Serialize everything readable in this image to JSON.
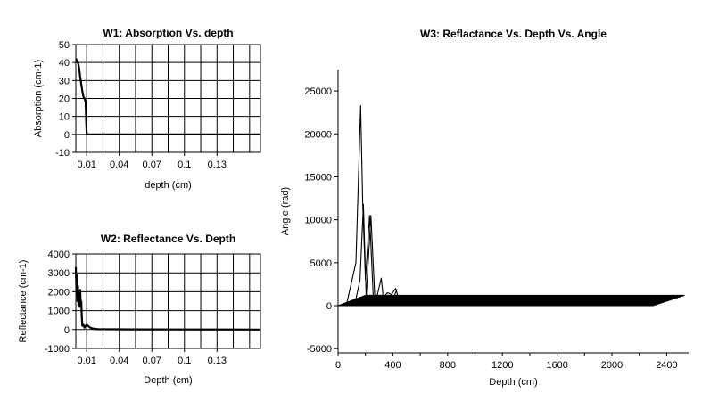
{
  "chart_data": [
    {
      "id": "w1",
      "type": "line",
      "title": "W1: Absorption Vs. depth",
      "xlabel": "depth (cm)",
      "ylabel": "Absorption (cm-1)",
      "xlim": [
        0,
        0.17
      ],
      "ylim": [
        -10,
        50
      ],
      "xticks": [
        {
          "v": 0.01,
          "t": "0.01"
        },
        {
          "v": 0.04,
          "t": "0.04"
        },
        {
          "v": 0.07,
          "t": "0.07"
        },
        {
          "v": 0.1,
          "t": "0.1"
        },
        {
          "v": 0.13,
          "t": "0.13"
        }
      ],
      "yticks": [
        -10,
        0,
        10,
        20,
        30,
        40,
        50
      ],
      "grid": true,
      "series": [
        {
          "x": [
            0.0,
            0.001,
            0.002,
            0.003,
            0.004,
            0.005,
            0.006,
            0.007,
            0.008,
            0.009,
            0.0095,
            0.01,
            0.011,
            0.012,
            0.015,
            0.05,
            0.1,
            0.17
          ],
          "y": [
            42,
            41.5,
            40,
            37,
            32,
            28,
            24,
            21,
            20,
            18,
            8,
            0,
            0,
            0,
            0,
            0,
            0,
            0
          ]
        }
      ]
    },
    {
      "id": "w2",
      "type": "line",
      "title": "W2: Reflectance Vs. Depth",
      "xlabel": "Depth (cm)",
      "ylabel": "Reflectance (cm-1)",
      "xlim": [
        0,
        0.17
      ],
      "ylim": [
        -1000,
        4000
      ],
      "xticks": [
        {
          "v": 0.01,
          "t": "0.01"
        },
        {
          "v": 0.04,
          "t": "0.04"
        },
        {
          "v": 0.07,
          "t": "0.07"
        },
        {
          "v": 0.1,
          "t": "0.1"
        },
        {
          "v": 0.13,
          "t": "0.13"
        }
      ],
      "yticks": [
        -1000,
        0,
        1000,
        2000,
        3000,
        4000
      ],
      "grid": true,
      "series": [
        {
          "x": [
            0.0,
            0.0005,
            0.001,
            0.0015,
            0.002,
            0.0025,
            0.003,
            0.0035,
            0.004,
            0.0045,
            0.005,
            0.0055,
            0.006,
            0.007,
            0.008,
            0.009,
            0.01,
            0.012,
            0.014,
            0.016,
            0.02,
            0.05,
            0.1,
            0.17
          ],
          "y": [
            3300,
            2200,
            2900,
            1500,
            2300,
            1300,
            1900,
            1200,
            2100,
            1300,
            1500,
            700,
            200,
            250,
            100,
            200,
            250,
            150,
            80,
            50,
            20,
            10,
            5,
            0
          ]
        }
      ]
    },
    {
      "id": "w3",
      "type": "line",
      "title": "W3: Reflactance Vs. Depth Vs. Angle",
      "xlabel": "Depth (cm)",
      "ylabel": "Angle (rad)",
      "xlim": [
        0,
        2560
      ],
      "ylim": [
        -5500,
        27500
      ],
      "xticks": [
        {
          "v": 0,
          "t": "0"
        },
        {
          "v": 400,
          "t": "400"
        },
        {
          "v": 800,
          "t": "800"
        },
        {
          "v": 1200,
          "t": "1200"
        },
        {
          "v": 1600,
          "t": "1600"
        },
        {
          "v": 2000,
          "t": "2000"
        },
        {
          "v": 2400,
          "t": "2400"
        }
      ],
      "yticks": [
        -5000,
        0,
        5000,
        10000,
        15000,
        20000,
        25000
      ],
      "grid": false,
      "band": {
        "top": [
          [
            0,
            0
          ],
          [
            2300,
            0
          ],
          [
            2530,
            1200
          ],
          [
            200,
            1200
          ]
        ],
        "bottom": [
          [
            0,
            0
          ],
          [
            2300,
            0
          ]
        ]
      },
      "series": [
        {
          "x": [
            60,
            130,
            165,
            180,
            200,
            230,
            260
          ],
          "y": [
            0,
            5000,
            23300,
            12000,
            3000,
            10500,
            0
          ]
        },
        {
          "x": [
            120,
            160,
            185,
            205,
            240,
            270
          ],
          "y": [
            0,
            3000,
            11800,
            1000,
            10500,
            500
          ]
        },
        {
          "x": [
            240,
            280,
            315,
            330,
            360,
            390,
            420,
            450
          ],
          "y": [
            0,
            800,
            3200,
            900,
            1500,
            1300,
            2000,
            400
          ]
        },
        {
          "x": [
            300,
            330,
            360,
            400,
            430
          ],
          "y": [
            0,
            600,
            1200,
            700,
            1900
          ]
        }
      ]
    }
  ]
}
